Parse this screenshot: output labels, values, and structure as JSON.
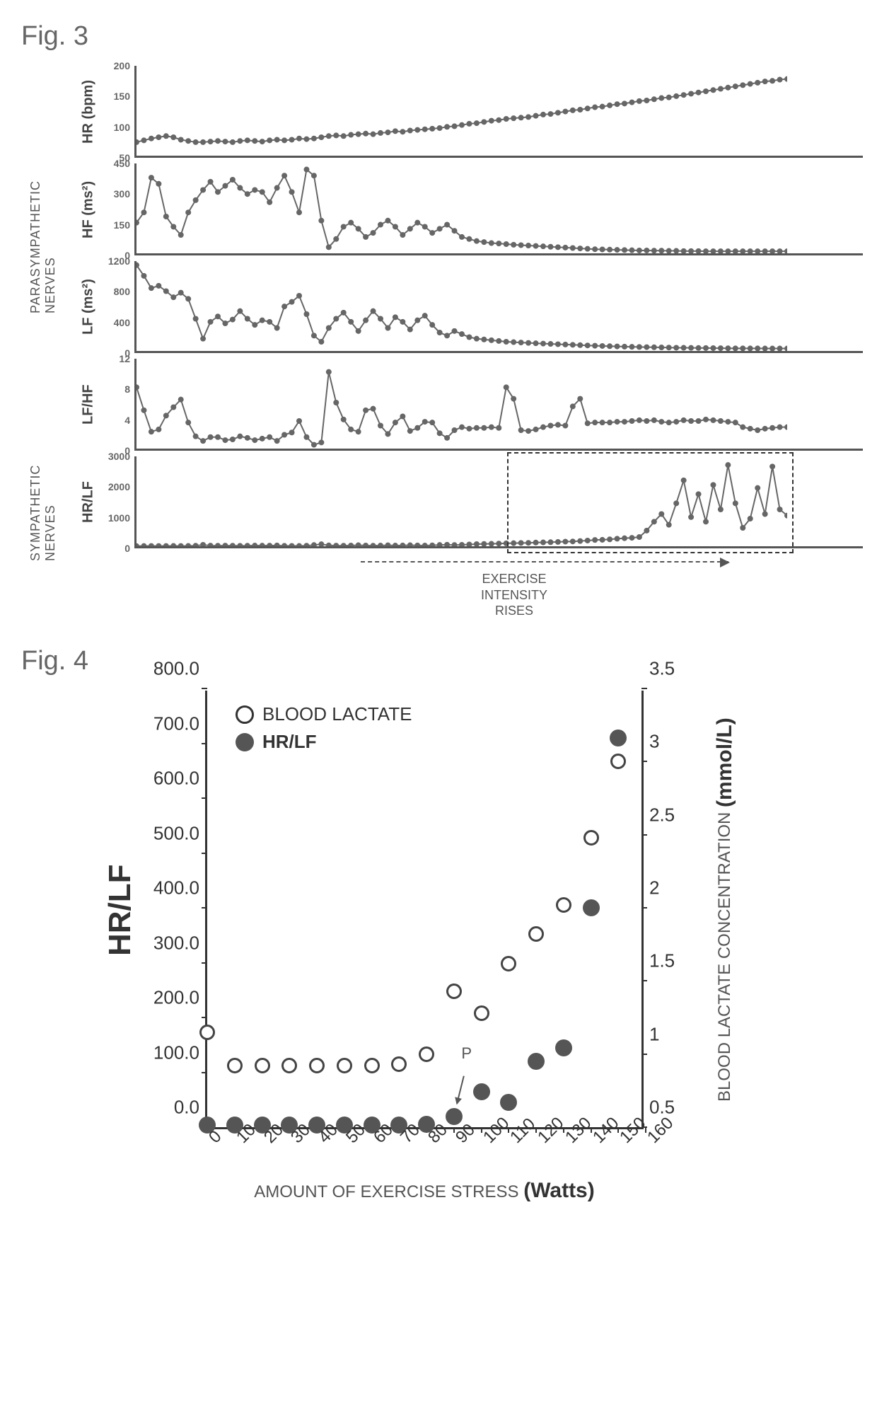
{
  "fig3": {
    "title": "Fig. 3",
    "sideLabels": {
      "parasympathetic": "PARASYMPATHETIC\nNERVES",
      "sympathetic": "SYMPATHETIC\nNERVES"
    },
    "plotWidthPx": 920,
    "panelHeightPx": 130,
    "lineColor": "#666666",
    "markerColor": "#666666",
    "markerRadius": 4,
    "lineWidth": 2,
    "panels": [
      {
        "id": "hr",
        "ylabel": "HR (bpm)",
        "ylim": [
          50,
          200
        ],
        "yticks": [
          50,
          100,
          150,
          200
        ],
        "values": [
          72,
          75,
          78,
          80,
          82,
          80,
          76,
          74,
          72,
          72,
          73,
          74,
          73,
          72,
          74,
          75,
          74,
          73,
          75,
          76,
          75,
          76,
          78,
          77,
          78,
          80,
          82,
          83,
          82,
          84,
          85,
          86,
          85,
          87,
          88,
          90,
          89,
          91,
          92,
          93,
          94,
          95,
          97,
          98,
          100,
          102,
          103,
          105,
          107,
          108,
          110,
          111,
          112,
          113,
          115,
          117,
          118,
          120,
          122,
          124,
          125,
          127,
          129,
          130,
          132,
          134,
          135,
          137,
          139,
          140,
          142,
          144,
          145,
          147,
          149,
          151,
          153,
          155,
          157,
          159,
          161,
          163,
          165,
          167,
          169,
          171,
          172,
          174,
          175
        ]
      },
      {
        "id": "hf",
        "ylabel": "HF (ms²)",
        "ylim": [
          0,
          450
        ],
        "yticks": [
          0,
          150,
          300,
          450
        ],
        "values": [
          150,
          200,
          370,
          340,
          180,
          130,
          90,
          200,
          260,
          310,
          350,
          300,
          330,
          360,
          320,
          290,
          310,
          300,
          250,
          320,
          380,
          300,
          200,
          410,
          380,
          160,
          30,
          70,
          130,
          150,
          120,
          80,
          100,
          140,
          160,
          130,
          90,
          120,
          150,
          130,
          100,
          120,
          140,
          110,
          80,
          70,
          60,
          55,
          50,
          48,
          45,
          42,
          40,
          38,
          36,
          34,
          32,
          30,
          28,
          26,
          24,
          22,
          20,
          19,
          18,
          17,
          16,
          15,
          14,
          14,
          13,
          13,
          12,
          12,
          11,
          11,
          11,
          10,
          10,
          10,
          10,
          10,
          10,
          10,
          10,
          10,
          10,
          10,
          10
        ]
      },
      {
        "id": "lf",
        "ylabel": "LF (ms²)",
        "ylim": [
          0,
          1200
        ],
        "yticks": [
          0,
          400,
          800,
          1200
        ],
        "values": [
          1120,
          980,
          820,
          850,
          780,
          700,
          760,
          680,
          420,
          160,
          380,
          450,
          360,
          410,
          520,
          420,
          340,
          400,
          380,
          300,
          580,
          640,
          720,
          480,
          200,
          120,
          300,
          420,
          500,
          380,
          260,
          400,
          520,
          420,
          300,
          440,
          380,
          280,
          400,
          460,
          340,
          240,
          200,
          260,
          220,
          180,
          160,
          150,
          140,
          130,
          120,
          115,
          110,
          105,
          100,
          96,
          92,
          88,
          84,
          80,
          76,
          72,
          68,
          65,
          62,
          59,
          56,
          54,
          52,
          50,
          48,
          46,
          44,
          42,
          41,
          40,
          39,
          38,
          37,
          36,
          35,
          34,
          34,
          33,
          33,
          32,
          32,
          32,
          32
        ]
      },
      {
        "id": "lfhf",
        "ylabel": "LF/HF",
        "ylim": [
          0,
          12
        ],
        "yticks": [
          0,
          4,
          8,
          12
        ],
        "values": [
          8.0,
          5.0,
          2.2,
          2.5,
          4.3,
          5.4,
          6.4,
          3.4,
          1.6,
          1.0,
          1.5,
          1.5,
          1.1,
          1.2,
          1.6,
          1.4,
          1.1,
          1.3,
          1.5,
          1.0,
          1.8,
          2.1,
          3.6,
          1.5,
          0.5,
          0.8,
          10.0,
          6.0,
          3.8,
          2.5,
          2.2,
          5.0,
          5.2,
          3.0,
          1.9,
          3.4,
          4.2,
          2.3,
          2.7,
          3.5,
          3.4,
          2.0,
          1.4,
          2.4,
          2.8,
          2.6,
          2.7,
          2.7,
          2.8,
          2.7,
          8.0,
          6.5,
          2.4,
          2.3,
          2.5,
          2.8,
          3.0,
          3.1,
          3.0,
          5.5,
          6.5,
          3.3,
          3.4,
          3.4,
          3.4,
          3.5,
          3.5,
          3.6,
          3.7,
          3.6,
          3.7,
          3.5,
          3.4,
          3.5,
          3.7,
          3.6,
          3.6,
          3.8,
          3.7,
          3.6,
          3.5,
          3.4,
          2.8,
          2.6,
          2.4,
          2.6,
          2.7,
          2.8,
          2.8
        ]
      },
      {
        "id": "hrlf",
        "ylabel": "HR/LF",
        "ylim": [
          0,
          3000
        ],
        "yticks": [
          0,
          1000,
          2000,
          3000
        ],
        "dashedBox": {
          "leftFrac": 0.57,
          "topFrac": -0.05,
          "widthFrac": 0.44,
          "heightFrac": 1.1
        },
        "values": [
          5,
          8,
          10,
          10,
          10,
          11,
          10,
          11,
          18,
          46,
          20,
          17,
          21,
          18,
          15,
          18,
          22,
          19,
          20,
          26,
          13,
          12,
          11,
          17,
          40,
          65,
          28,
          21,
          18,
          23,
          34,
          23,
          18,
          22,
          32,
          22,
          25,
          34,
          26,
          22,
          30,
          42,
          50,
          41,
          47,
          59,
          70,
          75,
          80,
          87,
          95,
          100,
          108,
          110,
          120,
          126,
          132,
          140,
          151,
          157,
          170,
          185,
          205,
          210,
          225,
          245,
          262,
          275,
          300,
          510,
          800,
          1050,
          700,
          1400,
          2150,
          950,
          1700,
          800,
          2000,
          1200,
          2650,
          1400,
          600,
          900,
          1900,
          1050,
          2600,
          1200,
          1000
        ]
      }
    ],
    "footer": {
      "text": "EXERCISE\nINTENSITY\nRISES"
    }
  },
  "fig4": {
    "title": "Fig. 4",
    "plotWidthPx": 620,
    "plotHeightPx": 620,
    "xlabel_prefix": "AMOUNT OF EXERCISE STRESS ",
    "xlabel_bold": "(Watts)",
    "leftAxis": {
      "label": "HR/LF",
      "lim": [
        0,
        800
      ],
      "ticks": [
        0,
        100,
        200,
        300,
        400,
        500,
        600,
        700,
        800
      ],
      "tickLabels": [
        "0.0",
        "100.0",
        "200.0",
        "300.0",
        "400.0",
        "500.0",
        "600.0",
        "700.0",
        "800.0"
      ]
    },
    "rightAxis": {
      "label_prefix": "BLOOD LACTATE CONCENTRATION ",
      "label_bold": "(mmol/L)",
      "lim": [
        0.5,
        3.5
      ],
      "ticks": [
        0.5,
        1,
        1.5,
        2,
        2.5,
        3,
        3.5
      ],
      "tickLabels": [
        "0.5",
        "1",
        "1.5",
        "2",
        "2.5",
        "3",
        "3.5"
      ]
    },
    "xAxis": {
      "lim": [
        0,
        160
      ],
      "ticks": [
        0,
        10,
        20,
        30,
        40,
        50,
        60,
        70,
        80,
        90,
        100,
        110,
        120,
        130,
        140,
        150,
        160
      ]
    },
    "legend": {
      "open": "BLOOD LACTATE",
      "filled": "HR/LF"
    },
    "pMarker": {
      "x": 90,
      "label": "P"
    },
    "series": {
      "hrlf": {
        "marker": "filled",
        "color": "#555555",
        "x": [
          0,
          10,
          20,
          30,
          40,
          50,
          60,
          70,
          80,
          90,
          100,
          110,
          120,
          130,
          140,
          150
        ],
        "y": [
          4,
          4,
          4,
          4,
          4,
          4,
          4,
          4,
          5,
          20,
          65,
          45,
          120,
          145,
          400,
          710
        ]
      },
      "lactate": {
        "marker": "open",
        "color": "#444444",
        "x": [
          0,
          10,
          20,
          30,
          40,
          50,
          60,
          70,
          80,
          90,
          100,
          110,
          120,
          130,
          140,
          150
        ],
        "y": [
          1.15,
          0.92,
          0.92,
          0.92,
          0.92,
          0.92,
          0.92,
          0.93,
          1.0,
          1.43,
          1.28,
          1.62,
          1.82,
          2.02,
          2.48,
          3.0
        ]
      }
    }
  }
}
